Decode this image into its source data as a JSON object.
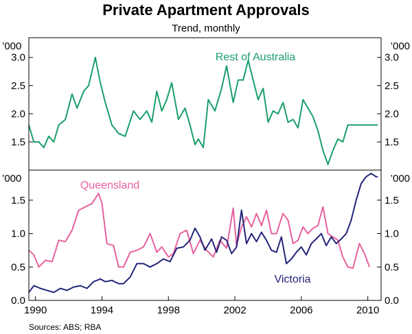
{
  "chart_data": {
    "type": "line",
    "title": "Private Apartment Approvals",
    "subtitle": "Trend, monthly",
    "source": "Sources: ABS; RBA",
    "unit_label": "’000",
    "xlim": [
      1989.6,
      2010.8
    ],
    "x_ticks": [
      "1990",
      "1994",
      "1998",
      "2002",
      "2006",
      "2010"
    ],
    "panels": [
      {
        "name": "top",
        "ylim": [
          1.0,
          3.35
        ],
        "y_ticks": [
          "1.5",
          "2.0",
          "2.5",
          "3.0"
        ],
        "series": [
          {
            "name": "Rest of Australia",
            "color": "#1a9e6a",
            "x": [
              1989.6,
              1989.9,
              1990.2,
              1990.5,
              1990.8,
              1991.1,
              1991.4,
              1991.8,
              1992.2,
              1992.5,
              1992.9,
              1993.2,
              1993.6,
              1993.9,
              1994.2,
              1994.6,
              1995.0,
              1995.4,
              1995.9,
              1996.3,
              1996.7,
              1997.0,
              1997.3,
              1997.6,
              1997.9,
              1998.2,
              1998.6,
              1999.0,
              1999.3,
              1999.6,
              1999.8,
              2000.1,
              2000.4,
              2000.8,
              2001.2,
              2001.5,
              2001.9,
              2002.2,
              2002.5,
              2002.8,
              2003.1,
              2003.4,
              2003.7,
              2004.0,
              2004.3,
              2004.6,
              2004.9,
              2005.2,
              2005.5,
              2005.8,
              2006.1,
              2006.4,
              2006.7,
              2007.0,
              2007.3,
              2007.6,
              2007.9,
              2008.2,
              2008.5,
              2008.8,
              2009.1,
              2009.4,
              2009.7,
              2010.0,
              2010.3,
              2010.6
            ],
            "values": [
              1.8,
              1.5,
              1.5,
              1.4,
              1.6,
              1.5,
              1.8,
              1.9,
              2.35,
              2.1,
              2.4,
              2.5,
              3.0,
              2.55,
              2.2,
              1.8,
              1.65,
              1.6,
              2.05,
              1.9,
              2.05,
              1.85,
              2.4,
              2.05,
              2.25,
              2.55,
              1.9,
              2.1,
              1.8,
              1.45,
              1.55,
              1.4,
              2.25,
              2.05,
              2.45,
              2.85,
              2.2,
              2.6,
              2.6,
              2.95,
              2.6,
              2.25,
              2.45,
              1.85,
              2.05,
              2.0,
              2.2,
              1.85,
              1.9,
              1.75,
              2.25,
              2.1,
              1.95,
              1.7,
              1.35,
              1.1,
              1.35,
              1.55,
              1.5,
              1.8,
              1.8,
              1.8,
              1.8,
              1.8,
              1.8,
              1.8
            ]
          }
        ]
      },
      {
        "name": "bottom",
        "ylim": [
          0.0,
          1.95
        ],
        "y_ticks": [
          "0.0",
          "0.5",
          "1.0",
          "1.5"
        ],
        "series": [
          {
            "name": "Queensland",
            "color": "#e8609e",
            "x": [
              1989.6,
              1989.9,
              1990.2,
              1990.6,
              1991.0,
              1991.4,
              1991.8,
              1992.2,
              1992.6,
              1993.0,
              1993.4,
              1993.8,
              1994.0,
              1994.3,
              1994.7,
              1995.0,
              1995.3,
              1995.7,
              1996.1,
              1996.5,
              1996.9,
              1997.3,
              1997.6,
              1998.0,
              1998.3,
              1998.7,
              1999.1,
              1999.5,
              1999.9,
              2000.3,
              2000.7,
              2001.1,
              2001.5,
              2001.9,
              2002.1,
              2002.4,
              2002.7,
              2003.0,
              2003.3,
              2003.6,
              2003.9,
              2004.2,
              2004.5,
              2004.9,
              2005.2,
              2005.5,
              2005.8,
              2006.1,
              2006.4,
              2006.7,
              2007.0,
              2007.3,
              2007.6,
              2007.9,
              2008.2,
              2008.5,
              2008.8,
              2009.1,
              2009.5,
              2009.8,
              2010.1
            ],
            "values": [
              0.75,
              0.68,
              0.5,
              0.6,
              0.58,
              0.9,
              0.88,
              1.05,
              1.35,
              1.4,
              1.45,
              1.6,
              1.45,
              0.85,
              0.82,
              0.5,
              0.5,
              0.72,
              0.75,
              0.8,
              1.0,
              0.72,
              0.8,
              0.65,
              0.7,
              1.0,
              1.05,
              0.7,
              0.9,
              0.75,
              0.65,
              0.9,
              0.78,
              1.38,
              0.82,
              1.1,
              1.25,
              1.1,
              1.3,
              1.12,
              1.35,
              1.0,
              1.0,
              1.3,
              1.2,
              0.85,
              0.9,
              1.1,
              1.0,
              1.08,
              1.12,
              1.4,
              1.0,
              0.95,
              0.9,
              0.65,
              0.5,
              0.48,
              0.85,
              0.7,
              0.5
            ]
          },
          {
            "name": "Victoria",
            "color": "#23237a",
            "x": [
              1989.6,
              1989.9,
              1990.3,
              1990.7,
              1991.1,
              1991.5,
              1991.9,
              1992.3,
              1992.7,
              1993.1,
              1993.5,
              1993.9,
              1994.2,
              1994.6,
              1995.0,
              1995.3,
              1995.7,
              1996.1,
              1996.5,
              1996.9,
              1997.3,
              1997.7,
              1998.1,
              1998.5,
              1998.9,
              1999.3,
              1999.6,
              1999.9,
              2000.2,
              2000.6,
              2000.9,
              2001.2,
              2001.5,
              2001.8,
              2002.1,
              2002.4,
              2002.7,
              2003.0,
              2003.3,
              2003.6,
              2003.9,
              2004.2,
              2004.5,
              2004.8,
              2005.1,
              2005.4,
              2005.7,
              2006.0,
              2006.3,
              2006.6,
              2006.9,
              2007.2,
              2007.5,
              2007.8,
              2008.1,
              2008.4,
              2008.7,
              2009.0,
              2009.3,
              2009.6,
              2009.9,
              2010.2,
              2010.5,
              2010.6
            ],
            "values": [
              0.12,
              0.22,
              0.18,
              0.15,
              0.12,
              0.18,
              0.15,
              0.2,
              0.22,
              0.18,
              0.28,
              0.32,
              0.28,
              0.3,
              0.25,
              0.25,
              0.35,
              0.55,
              0.55,
              0.5,
              0.55,
              0.62,
              0.58,
              0.78,
              0.8,
              0.9,
              1.08,
              0.95,
              0.75,
              0.92,
              0.72,
              0.95,
              0.9,
              0.7,
              0.8,
              1.35,
              0.85,
              1.0,
              0.88,
              1.02,
              0.9,
              0.75,
              0.72,
              0.95,
              0.55,
              0.62,
              0.72,
              0.8,
              0.68,
              0.85,
              0.92,
              1.0,
              0.82,
              0.95,
              0.85,
              0.92,
              1.0,
              1.2,
              1.5,
              1.75,
              1.85,
              1.9,
              1.85,
              1.85
            ]
          }
        ]
      }
    ],
    "labels": {
      "rest": "Rest of Australia",
      "qld": "Queensland",
      "vic": "Victoria"
    }
  }
}
